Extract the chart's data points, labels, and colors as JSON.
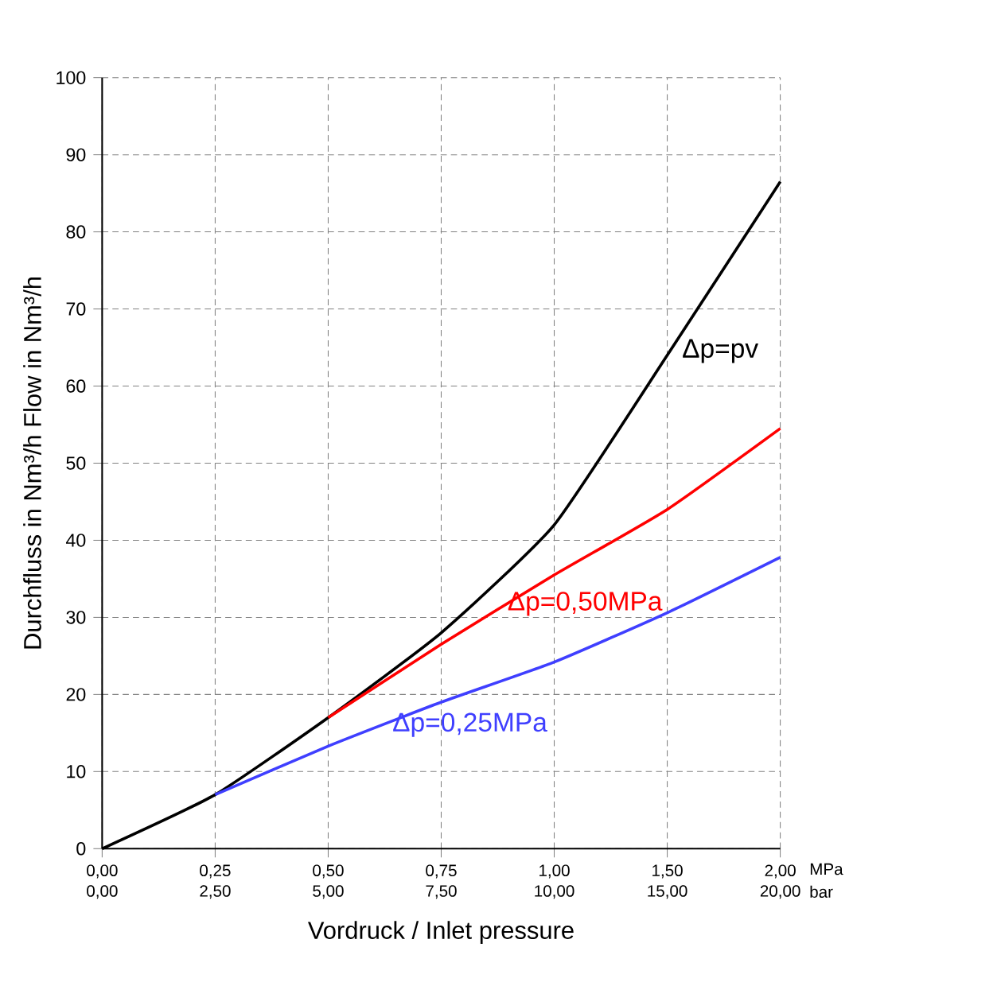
{
  "chart_data": {
    "type": "line",
    "xlabel": "Vordruck / Inlet pressure",
    "ylabel": "Durchfluss in Nm³/h   Flow in Nm³/h",
    "categories": [
      "0,00 0,00",
      "0,25 2,50",
      "0,50 5,00",
      "0,75 7,50",
      "1,00 10,00",
      "1,50 15,00",
      "2,00 20,00"
    ],
    "series": [
      {
        "name": "Δp=pv",
        "color": "#000000",
        "values": [
          0,
          7,
          17,
          28,
          42,
          64,
          86.5
        ]
      },
      {
        "name": "Δp=0,50MPa",
        "color": "#ff0000",
        "values": [
          null,
          null,
          17,
          26.5,
          35.5,
          44,
          54.5
        ]
      },
      {
        "name": "Δp=0,25MPa",
        "color": "#3f3fff",
        "values": [
          null,
          7,
          13.3,
          19,
          24.2,
          30.6,
          37.8
        ]
      }
    ],
    "annotations": [
      "MPa",
      "bar"
    ],
    "ylim": [
      0,
      100
    ],
    "yticks": [
      0,
      10,
      20,
      30,
      40,
      50,
      60,
      70,
      80,
      90,
      100
    ],
    "grid": true,
    "line_style": "solid",
    "marker": "none"
  }
}
